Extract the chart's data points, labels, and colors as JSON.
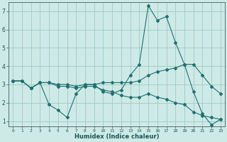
{
  "xlabel": "Humidex (Indice chaleur)",
  "ylabel": "",
  "xlim": [
    -0.5,
    23.5
  ],
  "ylim": [
    0.7,
    7.5
  ],
  "xticks": [
    0,
    1,
    2,
    3,
    4,
    5,
    6,
    7,
    8,
    9,
    10,
    11,
    12,
    13,
    14,
    15,
    16,
    17,
    18,
    19,
    20,
    21,
    22,
    23
  ],
  "yticks": [
    1,
    2,
    3,
    4,
    5,
    6,
    7
  ],
  "bg_color": "#ceeae6",
  "grid_color": "#a0c8c4",
  "line_color": "#1e7070",
  "series": [
    {
      "x": [
        0,
        1,
        2,
        3,
        4,
        5,
        6,
        7,
        8,
        9,
        10,
        11,
        12,
        13,
        14,
        15,
        16,
        17,
        18,
        19,
        20,
        21,
        22,
        23
      ],
      "y": [
        3.2,
        3.2,
        2.8,
        3.1,
        1.9,
        1.6,
        1.2,
        2.5,
        3.0,
        3.0,
        2.6,
        2.5,
        2.7,
        3.5,
        4.1,
        7.3,
        6.5,
        6.7,
        5.3,
        4.1,
        2.6,
        1.4,
        0.8,
        1.1
      ]
    },
    {
      "x": [
        0,
        1,
        2,
        3,
        4,
        5,
        6,
        7,
        8,
        9,
        10,
        11,
        12,
        13,
        14,
        15,
        16,
        17,
        18,
        19,
        20,
        21,
        22,
        23
      ],
      "y": [
        3.2,
        3.2,
        2.8,
        3.1,
        3.1,
        3.0,
        3.0,
        2.9,
        3.0,
        3.0,
        3.1,
        3.1,
        3.1,
        3.1,
        3.2,
        3.5,
        3.7,
        3.8,
        3.9,
        4.1,
        4.1,
        3.5,
        2.9,
        2.5
      ]
    },
    {
      "x": [
        0,
        1,
        2,
        3,
        4,
        5,
        6,
        7,
        8,
        9,
        10,
        11,
        12,
        13,
        14,
        15,
        16,
        17,
        18,
        19,
        20,
        21,
        22,
        23
      ],
      "y": [
        3.2,
        3.2,
        2.8,
        3.1,
        3.1,
        2.9,
        2.9,
        2.8,
        2.9,
        2.9,
        2.7,
        2.6,
        2.4,
        2.3,
        2.3,
        2.5,
        2.3,
        2.2,
        2.0,
        1.9,
        1.5,
        1.3,
        1.2,
        1.1
      ]
    }
  ],
  "figsize": [
    3.2,
    2.0
  ],
  "dpi": 100
}
